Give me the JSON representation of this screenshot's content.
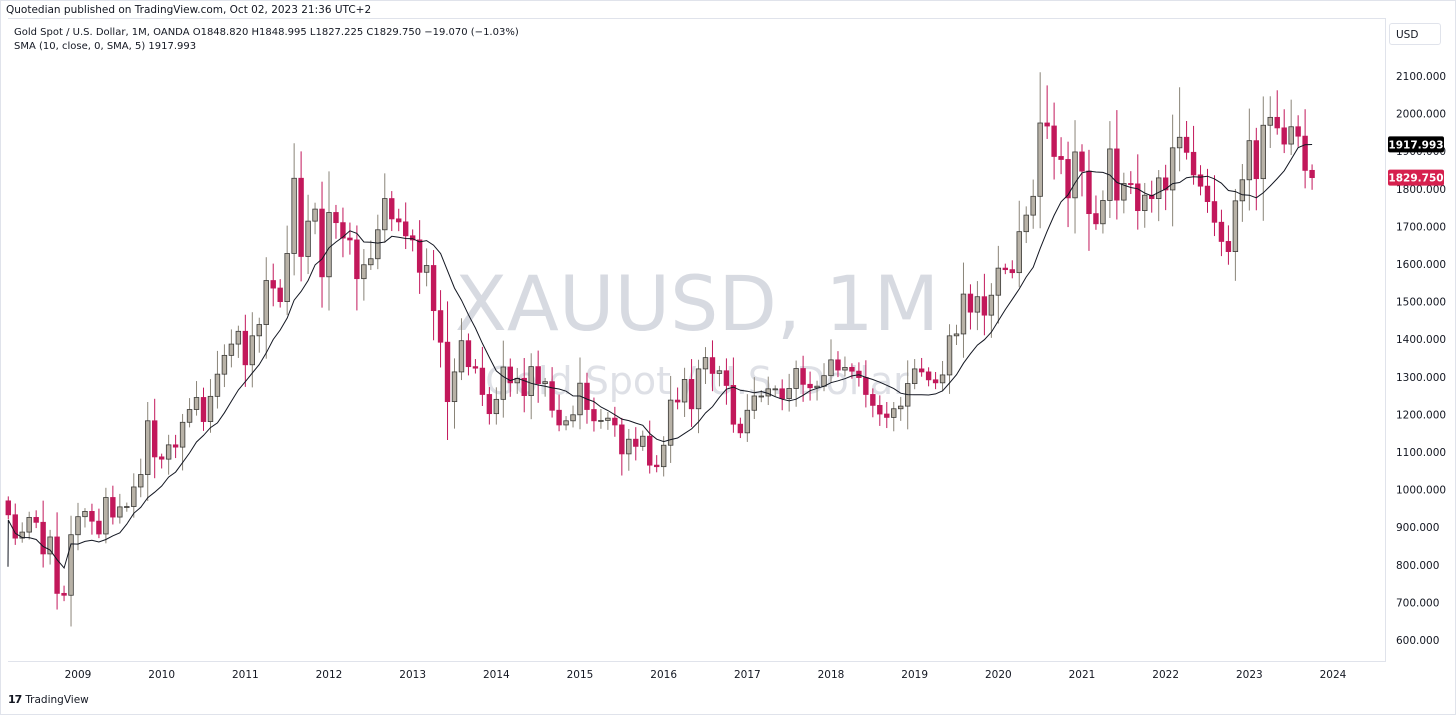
{
  "header": {
    "published_line": "Quotedian published on TradingView.com, Oct 02, 2023 21:36 UTC+2",
    "symbol_line": "Gold Spot / U.S. Dollar, 1M, OANDA  O1848.820  H1848.995  L1827.225  C1829.750  −19.070 (−1.03%)",
    "indicator_line": "SMA (10, close, 0, SMA, 5)  1917.993",
    "currency": "USD"
  },
  "footer": {
    "logo_glyph": "17",
    "brand": "TradingView"
  },
  "watermark": {
    "primary": "XAUUSD, 1M",
    "secondary": "Gold Spot / U.S. Dollar"
  },
  "colors": {
    "up": "#b8b2a7",
    "down": "#c2185b",
    "wick_up": "#8a8478",
    "sma": "#131722",
    "last_price": "#d6204e",
    "sma_label": "#000000"
  },
  "chart_data": {
    "type": "candlestick",
    "symbol": "XAUUSD",
    "interval": "1M",
    "y_axis": {
      "ticks": [
        600,
        700,
        800,
        900,
        1000,
        1100,
        1200,
        1300,
        1400,
        1500,
        1600,
        1700,
        1800,
        1900,
        2000,
        2100
      ],
      "tick_labels": [
        "600.000",
        "700.000",
        "800.000",
        "900.000",
        "1000.000",
        "1100.000",
        "1200.000",
        "1300.000",
        "1400.000",
        "1500.000",
        "1600.000",
        "1700.000",
        "1800.000",
        "1900.000",
        "2000.000",
        "2100.000"
      ],
      "range": [
        520,
        2180
      ]
    },
    "x_axis": {
      "years": [
        "2009",
        "2010",
        "2011",
        "2012",
        "2013",
        "2014",
        "2015",
        "2016",
        "2017",
        "2018",
        "2019",
        "2020",
        "2021",
        "2022",
        "2023",
        "2024"
      ],
      "range": [
        "2008-03",
        "2024-10"
      ]
    },
    "last_price": {
      "value": 1829.75,
      "label": "1829.750"
    },
    "sma_value": {
      "value": 1917.993,
      "label": "1917.993"
    },
    "sma_period": 10,
    "closes": [
      {
        "year": 2008,
        "values": [
          933,
          871,
          887,
          926,
          913,
          829,
          874,
          724,
          719,
          880
        ]
      },
      {
        "year": 2009,
        "values": [
          928,
          942,
          916,
          882,
          979,
          927,
          954,
          955,
          1007,
          1040,
          1183,
          1087
        ]
      },
      {
        "year": 2010,
        "values": [
          1081,
          1119,
          1113,
          1179,
          1213,
          1245,
          1181,
          1248,
          1307,
          1357,
          1387,
          1421
        ]
      },
      {
        "year": 2011,
        "values": [
          1332,
          1409,
          1439,
          1556,
          1536,
          1500,
          1628,
          1828,
          1620,
          1714,
          1746,
          1566
        ]
      },
      {
        "year": 2012,
        "values": [
          1737,
          1710,
          1669,
          1664,
          1561,
          1598,
          1614,
          1691,
          1774,
          1720,
          1712,
          1675
        ]
      },
      {
        "year": 2013,
        "values": [
          1664,
          1578,
          1596,
          1476,
          1392,
          1234,
          1313,
          1396,
          1327,
          1323,
          1253,
          1202
        ]
      },
      {
        "year": 2014,
        "values": [
          1240,
          1326,
          1284,
          1296,
          1250,
          1327,
          1282,
          1287,
          1211,
          1172,
          1183,
          1199
        ]
      },
      {
        "year": 2015,
        "values": [
          1283,
          1213,
          1183,
          1184,
          1190,
          1172,
          1095,
          1134,
          1115,
          1142,
          1065,
          1061
        ]
      },
      {
        "year": 2016,
        "values": [
          1118,
          1238,
          1233,
          1293,
          1215,
          1321,
          1351,
          1309,
          1316,
          1277,
          1174,
          1151
        ]
      },
      {
        "year": 2017,
        "values": [
          1211,
          1249,
          1249,
          1268,
          1268,
          1242,
          1269,
          1322,
          1280,
          1271,
          1275,
          1303
        ]
      },
      {
        "year": 2018,
        "values": [
          1345,
          1318,
          1325,
          1315,
          1298,
          1253,
          1224,
          1201,
          1192,
          1215,
          1222,
          1282
        ]
      },
      {
        "year": 2019,
        "values": [
          1321,
          1313,
          1292,
          1284,
          1305,
          1409,
          1414,
          1520,
          1472,
          1513,
          1464,
          1517
        ]
      },
      {
        "year": 2020,
        "values": [
          1589,
          1585,
          1577,
          1686,
          1730,
          1780,
          1975,
          1967,
          1886,
          1878,
          1776,
          1898
        ]
      },
      {
        "year": 2021,
        "values": [
          1847,
          1734,
          1707,
          1769,
          1906,
          1770,
          1814,
          1813,
          1742,
          1783,
          1774,
          1829
        ]
      },
      {
        "year": 2022,
        "values": [
          1797,
          1909,
          1937,
          1897,
          1837,
          1807,
          1766,
          1711,
          1660,
          1633,
          1768,
          1824
        ]
      },
      {
        "year": 2023,
        "values": [
          1928,
          1827,
          1969,
          1990,
          1962,
          1919,
          1965,
          1940,
          1849,
          1829.75
        ]
      }
    ]
  }
}
